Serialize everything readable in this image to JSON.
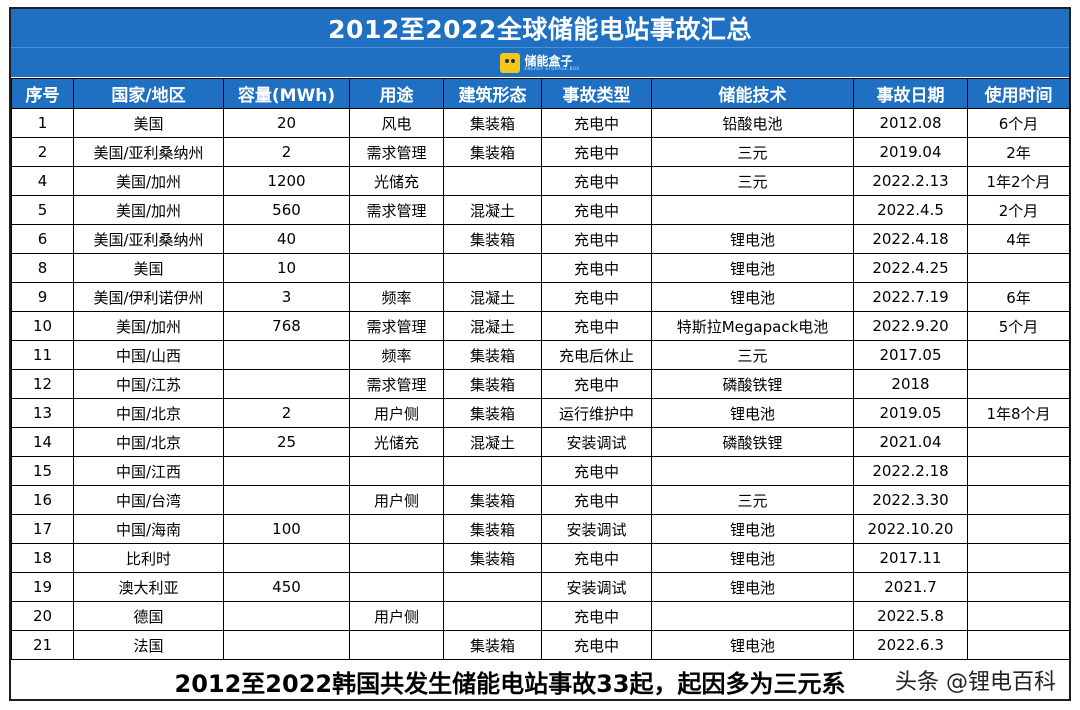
{
  "title": "2012至2022全球储能电站事故汇总",
  "logo": {
    "name": "储能盒子",
    "sub": "ENERGY STORAGE BOX"
  },
  "columns": [
    "序号",
    "国家/地区",
    "容量(MWh)",
    "用途",
    "建筑形态",
    "事故类型",
    "储能技术",
    "事故日期",
    "使用时间"
  ],
  "rows": [
    [
      "1",
      "美国",
      "20",
      "风电",
      "集装箱",
      "充电中",
      "铅酸电池",
      "2012.08",
      "6个月"
    ],
    [
      "2",
      "美国/亚利桑纳州",
      "2",
      "需求管理",
      "集装箱",
      "充电中",
      "三元",
      "2019.04",
      "2年"
    ],
    [
      "4",
      "美国/加州",
      "1200",
      "光储充",
      "",
      "充电中",
      "三元",
      "2022.2.13",
      "1年2个月"
    ],
    [
      "5",
      "美国/加州",
      "560",
      "需求管理",
      "混凝土",
      "充电中",
      "",
      "2022.4.5",
      "2个月"
    ],
    [
      "6",
      "美国/亚利桑纳州",
      "40",
      "",
      "集装箱",
      "充电中",
      "锂电池",
      "2022.4.18",
      "4年"
    ],
    [
      "8",
      "美国",
      "10",
      "",
      "",
      "充电中",
      "锂电池",
      "2022.4.25",
      ""
    ],
    [
      "9",
      "美国/伊利诺伊州",
      "3",
      "频率",
      "混凝土",
      "充电中",
      "锂电池",
      "2022.7.19",
      "6年"
    ],
    [
      "10",
      "美国/加州",
      "768",
      "需求管理",
      "混凝土",
      "充电中",
      "特斯拉Megapack电池",
      "2022.9.20",
      "5个月"
    ],
    [
      "11",
      "中国/山西",
      "",
      "频率",
      "集装箱",
      "充电后休止",
      "三元",
      "2017.05",
      ""
    ],
    [
      "12",
      "中国/江苏",
      "",
      "需求管理",
      "集装箱",
      "充电中",
      "磷酸铁锂",
      "2018",
      ""
    ],
    [
      "13",
      "中国/北京",
      "2",
      "用户侧",
      "集装箱",
      "运行维护中",
      "锂电池",
      "2019.05",
      "1年8个月"
    ],
    [
      "14",
      "中国/北京",
      "25",
      "光储充",
      "混凝土",
      "安装调试",
      "磷酸铁锂",
      "2021.04",
      ""
    ],
    [
      "15",
      "中国/江西",
      "",
      "",
      "",
      "充电中",
      "",
      "2022.2.18",
      ""
    ],
    [
      "16",
      "中国/台湾",
      "",
      "用户侧",
      "集装箱",
      "充电中",
      "三元",
      "2022.3.30",
      ""
    ],
    [
      "17",
      "中国/海南",
      "100",
      "",
      "集装箱",
      "安装调试",
      "锂电池",
      "2022.10.20",
      ""
    ],
    [
      "18",
      "比利时",
      "",
      "",
      "集装箱",
      "充电中",
      "锂电池",
      "2017.11",
      ""
    ],
    [
      "19",
      "澳大利亚",
      "450",
      "",
      "",
      "安装调试",
      "锂电池",
      "2021.7",
      ""
    ],
    [
      "20",
      "德国",
      "",
      "用户侧",
      "",
      "充电中",
      "",
      "2022.5.8",
      ""
    ],
    [
      "21",
      "法国",
      "",
      "",
      "集装箱",
      "充电中",
      "锂电池",
      "2022.6.3",
      ""
    ]
  ],
  "footer": "2012至2022韩国共发生储能电站事故33起，起因多为三元系",
  "watermark": "头条 @锂电百科",
  "colors": {
    "header_blue": "#1f6fc2",
    "logo_yellow": "#f5c518"
  }
}
